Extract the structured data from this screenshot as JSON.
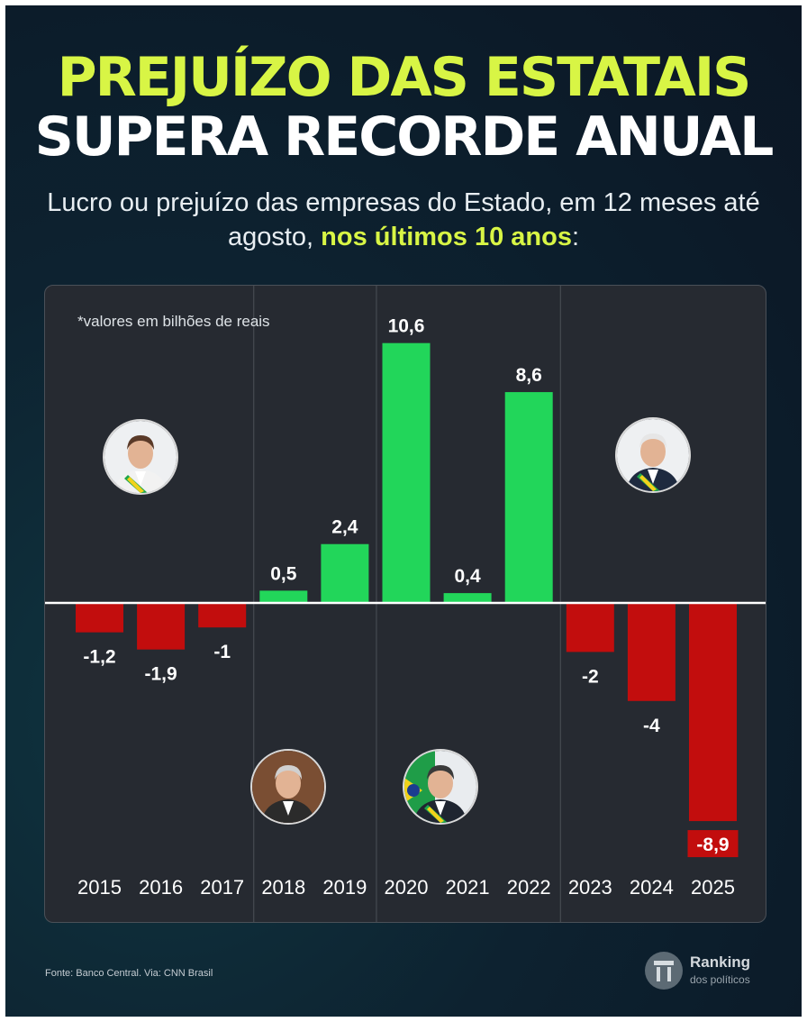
{
  "header": {
    "title_line1": "PREJUÍZO DAS ESTATAIS",
    "title_line2": "SUPERA RECORDE ANUAL",
    "subtitle_part1": "Lucro ou prejuízo das empresas do Estado, em 12 meses até agosto, ",
    "subtitle_highlight": "nos últimos 10 anos",
    "subtitle_end": ":"
  },
  "note": "*valores em bilhões de reais",
  "chart_data": {
    "type": "bar",
    "title": "",
    "categories": [
      "2015",
      "2016",
      "2017",
      "2018",
      "2019",
      "2020",
      "2021",
      "2022",
      "2023",
      "2024",
      "2025"
    ],
    "values": [
      -1.2,
      -1.9,
      -1,
      0.5,
      2.4,
      10.6,
      0.4,
      8.6,
      -2,
      -4,
      -8.9
    ],
    "value_labels": [
      "-1,2",
      "-1,9",
      "-1",
      "0,5",
      "2,4",
      "10,6",
      "0,4",
      "8,6",
      "-2",
      "-4",
      "-8,9"
    ],
    "ylim": [
      -10,
      11
    ],
    "grid": false,
    "positive_color": "#22d65a",
    "negative_color": "#c20d0d",
    "period_dividers_after": [
      "2017",
      "2019",
      "2022"
    ]
  },
  "portraits": [
    {
      "name": "dilma-portrait",
      "kind": "female",
      "suit": "#f2f2f2",
      "hair": "#5a3a28",
      "sash": true
    },
    {
      "name": "temer-portrait",
      "kind": "male",
      "suit": "#2b2b2b",
      "hair": "#d0d0d0",
      "sash": false
    },
    {
      "name": "bolsonaro-portrait",
      "kind": "male",
      "suit": "#1f2530",
      "hair": "#3a3a3a",
      "sash": true
    },
    {
      "name": "lula-portrait",
      "kind": "male",
      "suit": "#1e2a3f",
      "hair": "#e6e6e6",
      "sash": true
    }
  ],
  "footer": {
    "source": "Fonte: Banco Central. Via: CNN Brasil",
    "logo_title": "Ranking",
    "logo_sub": "dos políticos"
  },
  "colors": {
    "accent": "#d8f545",
    "panel": "#262a31"
  }
}
